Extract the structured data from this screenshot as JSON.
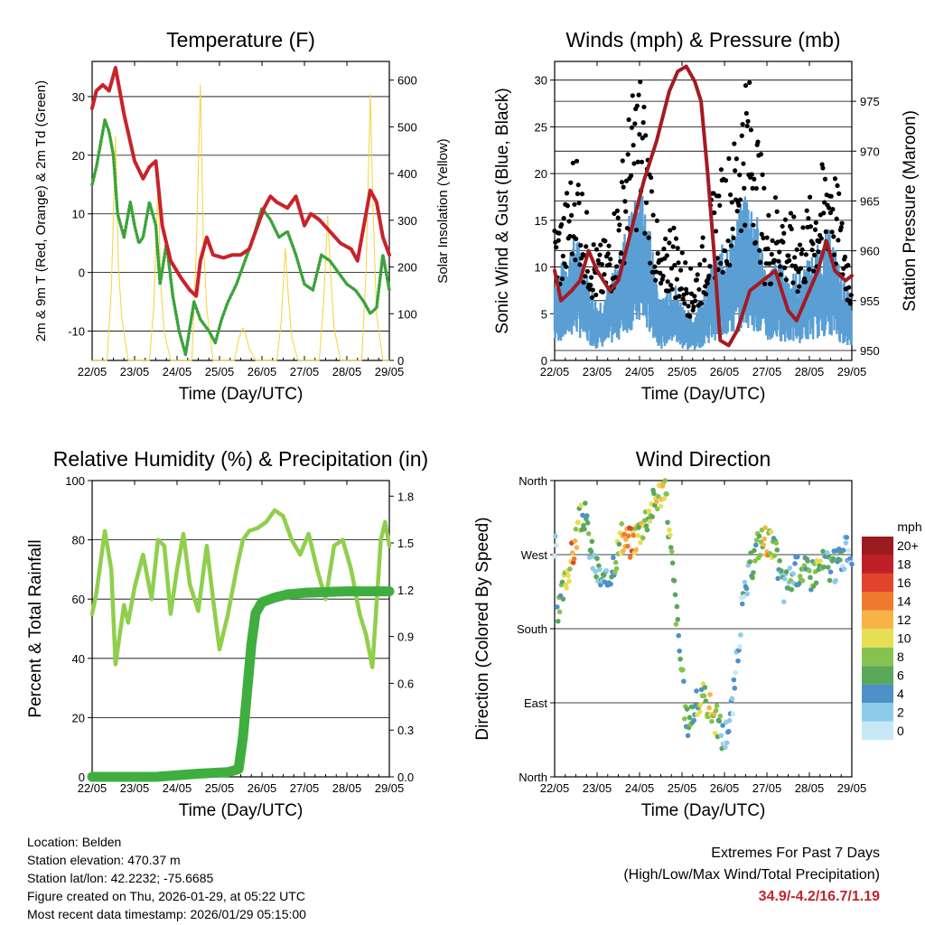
{
  "colors": {
    "temp_red": "#c8232b",
    "dew_green": "#3aa33a",
    "solar_yellow": "#f5d33b",
    "gust_black": "#000000",
    "wind_blue": "#5a9fd4",
    "pressure_maroon": "#a31b23",
    "rh_green": "#8fcf4c",
    "precip_green": "#3fae3f",
    "extremes_red": "#c0262c",
    "gridline": "#000000"
  },
  "time_ticks": [
    "22/05",
    "23/05",
    "24/05",
    "25/05",
    "26/05",
    "27/05",
    "28/05",
    "29/05"
  ],
  "chart_data": [
    {
      "id": "temperature",
      "type": "line",
      "title": "Temperature (F)",
      "xlabel": "Time (Day/UTC)",
      "ylabel": "2m & 9m T (Red, Orange) & 2m Td (Green)",
      "ylabel_right": "Solar Insolation (Yellow)",
      "ylim": [
        -15,
        36
      ],
      "yticks": [
        -10,
        0,
        10,
        20,
        30
      ],
      "ylim_right": [
        0,
        640
      ],
      "yticks_right": [
        0,
        100,
        200,
        300,
        400,
        500,
        600
      ],
      "xlim": [
        0,
        7
      ],
      "series": [
        {
          "name": "2m & 9m T",
          "color": "#c8232b",
          "style": "thick",
          "x": [
            0,
            0.1,
            0.25,
            0.4,
            0.55,
            0.75,
            1.0,
            1.2,
            1.35,
            1.5,
            1.65,
            1.85,
            2.1,
            2.3,
            2.45,
            2.55,
            2.7,
            2.85,
            3.1,
            3.3,
            3.5,
            3.7,
            3.9,
            4.05,
            4.2,
            4.35,
            4.6,
            4.8,
            5.0,
            5.15,
            5.35,
            5.6,
            5.85,
            6.1,
            6.25,
            6.4,
            6.55,
            6.7,
            6.85,
            7.0
          ],
          "values": [
            28,
            31,
            32,
            31,
            34.9,
            27,
            19,
            16,
            18,
            19,
            8,
            2,
            -1,
            -3,
            -4,
            2,
            6,
            3,
            2.5,
            3,
            3,
            4,
            8,
            11,
            13,
            12,
            11,
            13,
            8,
            10,
            9,
            7,
            5,
            4,
            2,
            8,
            14,
            12,
            6,
            3
          ]
        },
        {
          "name": "2m Td",
          "color": "#3aa33a",
          "style": "dotted",
          "x": [
            0,
            0.1,
            0.2,
            0.3,
            0.4,
            0.5,
            0.6,
            0.75,
            0.9,
            1.0,
            1.1,
            1.2,
            1.35,
            1.5,
            1.6,
            1.75,
            1.9,
            2.05,
            2.2,
            2.4,
            2.55,
            2.75,
            2.9,
            3.05,
            3.2,
            3.4,
            3.6,
            3.8,
            4.0,
            4.2,
            4.4,
            4.6,
            4.8,
            5.0,
            5.2,
            5.4,
            5.6,
            5.8,
            6.0,
            6.2,
            6.4,
            6.55,
            6.7,
            6.85,
            7.0
          ],
          "values": [
            15,
            18,
            22,
            26,
            24,
            20,
            10,
            6,
            12,
            8,
            5,
            6,
            12,
            8,
            -2,
            5,
            -4,
            -10,
            -14,
            -5,
            -8,
            -10,
            -12,
            -8,
            -5,
            -2,
            2,
            6,
            11,
            9,
            6,
            7,
            3,
            -2,
            -3,
            3,
            2,
            0,
            -2,
            -3,
            -5,
            -7,
            -6,
            3,
            -3
          ]
        },
        {
          "name": "Solar Insolation",
          "color": "#f5d33b",
          "style": "thin",
          "axis": "right",
          "x": [
            0,
            0.35,
            0.45,
            0.55,
            0.62,
            0.7,
            0.85,
            1.35,
            1.45,
            1.55,
            1.62,
            1.7,
            1.85,
            2.35,
            2.45,
            2.55,
            2.62,
            2.7,
            2.85,
            3.35,
            3.45,
            3.55,
            3.62,
            3.7,
            3.85,
            4.35,
            4.45,
            4.55,
            4.62,
            4.7,
            4.85,
            5.35,
            5.45,
            5.55,
            5.62,
            5.7,
            5.85,
            6.35,
            6.45,
            6.55,
            6.62,
            6.7,
            6.85,
            7.0
          ],
          "values": [
            0,
            0,
            150,
            480,
            200,
            90,
            0,
            0,
            110,
            380,
            160,
            60,
            0,
            0,
            230,
            590,
            260,
            110,
            0,
            0,
            45,
            70,
            55,
            25,
            0,
            0,
            80,
            240,
            140,
            50,
            0,
            0,
            120,
            310,
            180,
            70,
            0,
            0,
            190,
            570,
            310,
            100,
            0,
            0
          ]
        }
      ]
    },
    {
      "id": "winds",
      "type": "line",
      "title": "Winds (mph) & Pressure (mb)",
      "xlabel": "Time (Day/UTC)",
      "ylabel": "Sonic Wind & Gust (Blue, Black)",
      "ylabel_right": "Station Pressure (Maroon)",
      "ylim": [
        0,
        32
      ],
      "yticks": [
        0,
        5,
        10,
        15,
        20,
        25,
        30
      ],
      "ylim_right": [
        949,
        979
      ],
      "yticks_right": [
        950,
        955,
        960,
        965,
        970,
        975
      ],
      "xlim": [
        0,
        7
      ],
      "series": [
        {
          "name": "Gust",
          "color": "#000000",
          "style": "dots",
          "x": [
            0,
            0.25,
            0.5,
            0.75,
            1.0,
            1.25,
            1.5,
            1.75,
            2.0,
            2.25,
            2.5,
            2.75,
            3.0,
            3.25,
            3.5,
            3.75,
            4.0,
            4.25,
            4.5,
            4.75,
            5.0,
            5.25,
            5.5,
            5.75,
            6.0,
            6.25,
            6.5,
            6.75,
            7.0
          ],
          "values": [
            11,
            13,
            18,
            12,
            9,
            10,
            14,
            20,
            24,
            17,
            8,
            12,
            9,
            7,
            10,
            14,
            16,
            18,
            24,
            20,
            12,
            14,
            12,
            11,
            13,
            15,
            18,
            12,
            8
          ]
        },
        {
          "name": "Sonic Wind",
          "color": "#5a9fd4",
          "style": "thick",
          "x": [
            0,
            0.25,
            0.5,
            0.75,
            1.0,
            1.25,
            1.5,
            1.75,
            2.0,
            2.25,
            2.5,
            2.75,
            3.0,
            3.25,
            3.5,
            3.75,
            4.0,
            4.25,
            4.5,
            4.75,
            5.0,
            5.25,
            5.5,
            5.75,
            6.0,
            6.25,
            6.5,
            6.75,
            7.0
          ],
          "values": [
            6,
            7,
            9,
            6,
            4,
            5,
            7,
            10,
            12,
            9,
            4,
            6,
            4,
            3,
            5,
            7,
            8,
            9,
            12,
            10,
            6,
            7,
            6,
            6,
            7,
            8,
            9,
            6,
            4
          ]
        },
        {
          "name": "Station Pressure",
          "color": "#a31b23",
          "style": "thick",
          "axis": "right",
          "x": [
            0,
            0.15,
            0.4,
            0.6,
            0.8,
            1.0,
            1.3,
            1.5,
            1.8,
            2.1,
            2.4,
            2.7,
            2.9,
            3.1,
            3.3,
            3.45,
            3.6,
            3.75,
            3.9,
            4.1,
            4.3,
            4.6,
            4.9,
            5.2,
            5.5,
            5.7,
            5.9,
            6.2,
            6.4,
            6.6,
            6.85,
            7.0
          ],
          "values": [
            958,
            955,
            956,
            957,
            960,
            958,
            956,
            957,
            962,
            967,
            971,
            976,
            978,
            978.5,
            977,
            975,
            968,
            960,
            951,
            950.5,
            952,
            956,
            957,
            958,
            954,
            953,
            955,
            958,
            961,
            958,
            957,
            957.5
          ]
        }
      ]
    },
    {
      "id": "humidity",
      "type": "line",
      "title": "Relative Humidity (%) & Precipitation (in)",
      "xlabel": "Time (Day/UTC)",
      "ylabel": "Percent & Total Rainfall",
      "ylim": [
        0,
        100
      ],
      "yticks": [
        0,
        20,
        40,
        60,
        80,
        100
      ],
      "ylim_right": [
        0,
        1.9
      ],
      "yticks_right": [
        "0.0",
        "0.3",
        "0.6",
        "0.9",
        "1.2",
        "1.5",
        "1.8"
      ],
      "xlim": [
        0,
        7
      ],
      "series": [
        {
          "name": "Relative Humidity",
          "color": "#8fcf4c",
          "style": "thick",
          "x": [
            0,
            0.1,
            0.3,
            0.45,
            0.55,
            0.65,
            0.75,
            0.85,
            1.0,
            1.2,
            1.4,
            1.55,
            1.7,
            1.85,
            2.0,
            2.15,
            2.3,
            2.5,
            2.7,
            2.85,
            3.0,
            3.2,
            3.4,
            3.55,
            3.7,
            3.9,
            4.1,
            4.3,
            4.5,
            4.7,
            4.9,
            5.1,
            5.3,
            5.5,
            5.7,
            5.9,
            6.1,
            6.3,
            6.45,
            6.6,
            6.8,
            6.9,
            7.0
          ],
          "values": [
            55,
            62,
            83,
            70,
            38,
            48,
            58,
            52,
            64,
            75,
            60,
            80,
            78,
            55,
            70,
            82,
            65,
            56,
            78,
            60,
            43,
            55,
            70,
            80,
            83,
            84,
            86,
            90,
            88,
            80,
            75,
            82,
            70,
            60,
            78,
            80,
            70,
            55,
            48,
            37,
            80,
            86,
            78
          ]
        },
        {
          "name": "Total Precipitation",
          "color": "#3fae3f",
          "style": "heavy",
          "axis": "right",
          "x": [
            0,
            1.5,
            2.5,
            3.2,
            3.45,
            3.55,
            3.65,
            3.75,
            3.85,
            4.0,
            4.3,
            4.6,
            5.0,
            6.0,
            7.0
          ],
          "values": [
            0,
            0.0,
            0.02,
            0.03,
            0.05,
            0.25,
            0.55,
            0.85,
            1.05,
            1.12,
            1.15,
            1.17,
            1.18,
            1.19,
            1.19
          ]
        }
      ]
    },
    {
      "id": "wind_direction",
      "type": "scatter",
      "title": "Wind Direction",
      "xlabel": "Time (Day/UTC)",
      "ylabel": "Direction (Colored By Speed)",
      "ylim": [
        0,
        360
      ],
      "ytick_labels": [
        "North",
        "East",
        "South",
        "West",
        "North"
      ],
      "xlim": [
        0,
        7
      ],
      "colorbar_label": "mph",
      "colorbar_levels": [
        "0",
        "2",
        "4",
        "6",
        "8",
        "10",
        "12",
        "14",
        "16",
        "18",
        "20+"
      ],
      "colorbar_colors": [
        "#c6e8f7",
        "#8ccbea",
        "#4e91c9",
        "#5aa85a",
        "#86c24f",
        "#e6df55",
        "#f7b445",
        "#ef7a2e",
        "#e0452b",
        "#bf2027",
        "#9b1b1f"
      ],
      "series": [
        {
          "name": "Direction",
          "x": [
            0.05,
            0.15,
            0.3,
            0.45,
            0.55,
            0.7,
            0.85,
            1.0,
            1.2,
            1.4,
            1.6,
            1.8,
            2.0,
            2.2,
            2.4,
            2.6,
            3.1,
            3.25,
            3.4,
            3.55,
            3.7,
            3.85,
            4.0,
            4.2,
            4.4,
            4.6,
            4.8,
            5.0,
            5.2,
            5.4,
            5.6,
            5.8,
            6.0,
            6.2,
            6.4,
            6.6,
            6.8,
            6.95
          ],
          "values": [
            185,
            215,
            250,
            275,
            305,
            320,
            275,
            250,
            230,
            265,
            290,
            285,
            300,
            320,
            340,
            355,
            65,
            80,
            90,
            95,
            80,
            65,
            45,
            90,
            200,
            250,
            285,
            290,
            270,
            230,
            245,
            255,
            245,
            255,
            260,
            255,
            270,
            275
          ],
          "speeds": [
            6,
            8,
            11,
            15,
            9,
            7,
            5,
            4,
            6,
            8,
            12,
            14,
            10,
            9,
            11,
            10,
            6,
            7,
            8,
            9,
            12,
            8,
            3,
            2,
            3,
            4,
            8,
            13,
            7,
            5,
            6,
            7,
            8,
            9,
            6,
            5,
            4,
            3
          ]
        }
      ]
    }
  ],
  "info": {
    "location": "Location: Belden",
    "elevation": "Station elevation: 470.37 m",
    "latlon": "Station lat/lon: 42.2232; -75.6685",
    "created": "Figure created on Thu, 2026-01-29, at 05:22 UTC",
    "recent": "Most recent data timestamp: 2026/01/29 05:15:00"
  },
  "extremes": {
    "title": "Extremes For Past 7 Days",
    "subtitle": "(High/Low/Max Wind/Total Precipitation)",
    "values": "34.9/-4.2/16.7/1.19"
  }
}
